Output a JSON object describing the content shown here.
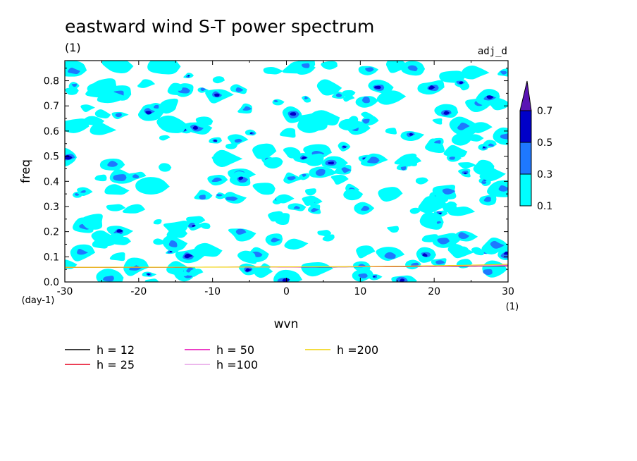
{
  "chart_data": {
    "type": "contour",
    "title": "eastward wind S-T power spectrum",
    "subtitle": "(1)",
    "tag": "adj_d",
    "xlabel": "wvn",
    "ylabel": "freq",
    "x_unit": "(1)",
    "y_unit": "(day-1)",
    "xlim": [
      -30,
      30
    ],
    "ylim": [
      0,
      0.88
    ],
    "x_ticks": [
      "-30",
      "-20",
      "-10",
      "0",
      "10",
      "20",
      "30"
    ],
    "y_ticks": [
      "0.0",
      "0.1",
      "0.2",
      "0.3",
      "0.4",
      "0.5",
      "0.6",
      "0.7",
      "0.8"
    ],
    "colorbar": {
      "levels": [
        "0.1",
        "0.3",
        "0.5",
        "0.7"
      ],
      "colors": [
        "#00ffff",
        "#1e78ff",
        "#0000c8",
        "#5a14b4"
      ]
    },
    "series": [
      {
        "name": "h = 12",
        "h": 12,
        "color": "#000000"
      },
      {
        "name": "h = 25",
        "h": 25,
        "color": "#e6001e"
      },
      {
        "name": "h = 50",
        "h": 50,
        "color": "#e600b4"
      },
      {
        "name": "h =100",
        "h": 100,
        "color": "#e6a0e6"
      },
      {
        "name": "h =200",
        "h": 200,
        "color": "#f0d200"
      }
    ]
  }
}
